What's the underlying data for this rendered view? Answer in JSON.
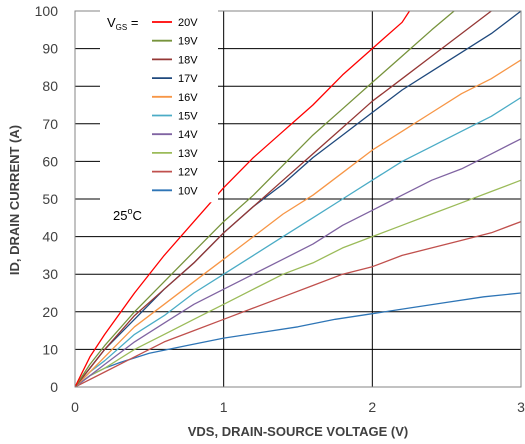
{
  "chart_data": {
    "type": "line",
    "title": "",
    "xlabel": "VDS, DRAIN-SOURCE VOLTAGE (V)",
    "ylabel": "ID, DRAIN CURRENT (A)",
    "xlim": [
      0,
      3
    ],
    "ylim": [
      0,
      100
    ],
    "x_ticks": [
      "0",
      "1",
      "2",
      "3"
    ],
    "y_ticks": [
      "0",
      "10",
      "20",
      "30",
      "40",
      "50",
      "60",
      "70",
      "80",
      "90",
      "100"
    ],
    "grid": "major gridlines on both axes",
    "legend_title": "VGS =",
    "legend_title_main": "V",
    "legend_title_sub": "GS",
    "legend_title_suffix": " =",
    "legend_position": "top-left",
    "annotation": "25°C",
    "annotation_main": "25",
    "annotation_sup": "o",
    "annotation_suffix": "C",
    "series": [
      {
        "name": "20V",
        "color": "#ff0000",
        "x": [
          0,
          0.1,
          0.2,
          0.4,
          0.6,
          0.8,
          1.0,
          1.2,
          1.4,
          1.6,
          1.8,
          2.0,
          2.2,
          2.25
        ],
        "y": [
          0,
          8,
          14,
          25,
          35,
          44,
          53,
          61,
          68,
          75,
          83,
          90,
          97,
          100
        ]
      },
      {
        "name": "19V",
        "color": "#77933c",
        "x": [
          0,
          0.1,
          0.2,
          0.4,
          0.6,
          0.8,
          1.0,
          1.2,
          1.4,
          1.6,
          1.8,
          2.0,
          2.2,
          2.4,
          2.55
        ],
        "y": [
          0,
          6,
          11,
          20,
          28,
          36,
          44,
          51,
          59,
          67,
          74,
          81,
          88,
          95,
          100
        ]
      },
      {
        "name": "18V",
        "color": "#953735",
        "x": [
          0,
          0.1,
          0.2,
          0.4,
          0.6,
          0.8,
          1.0,
          1.2,
          1.4,
          1.6,
          1.8,
          2.0,
          2.2,
          2.4,
          2.6,
          2.8
        ],
        "y": [
          0,
          5,
          10,
          19,
          26,
          33,
          41,
          48,
          55,
          62,
          69,
          76,
          82,
          88,
          94,
          100
        ]
      },
      {
        "name": "17V",
        "color": "#1f497d",
        "x": [
          0,
          0.1,
          0.2,
          0.4,
          0.6,
          0.8,
          1.0,
          1.2,
          1.4,
          1.6,
          1.8,
          2.0,
          2.2,
          2.4,
          2.6,
          2.8,
          3.0
        ],
        "y": [
          0,
          5,
          10,
          18,
          26,
          33,
          41,
          48,
          54,
          61,
          67,
          73,
          79,
          84,
          89,
          94,
          100
        ]
      },
      {
        "name": "16V",
        "color": "#f79646",
        "x": [
          0,
          0.1,
          0.2,
          0.4,
          0.6,
          0.8,
          1.0,
          1.2,
          1.4,
          1.6,
          1.8,
          2.0,
          2.2,
          2.4,
          2.6,
          2.8,
          3.0
        ],
        "y": [
          0,
          4,
          8,
          16,
          22,
          28,
          34,
          40,
          46,
          51,
          57,
          63,
          68,
          73,
          78,
          82,
          87
        ]
      },
      {
        "name": "15V",
        "color": "#4bacc6",
        "x": [
          0,
          0.1,
          0.2,
          0.4,
          0.6,
          0.8,
          1.0,
          1.2,
          1.4,
          1.6,
          1.8,
          2.0,
          2.2,
          2.4,
          2.6,
          2.8,
          3.0
        ],
        "y": [
          0,
          4,
          7,
          14,
          19,
          25,
          30,
          35,
          40,
          45,
          50,
          55,
          60,
          64,
          68,
          72,
          77
        ]
      },
      {
        "name": "14V",
        "color": "#8064a2",
        "x": [
          0,
          0.1,
          0.2,
          0.4,
          0.6,
          0.8,
          1.0,
          1.2,
          1.4,
          1.6,
          1.8,
          2.0,
          2.2,
          2.4,
          2.6,
          2.8,
          3.0
        ],
        "y": [
          0,
          3,
          6,
          12,
          17,
          22,
          26,
          30,
          34,
          38,
          43,
          47,
          51,
          55,
          58,
          62,
          66
        ]
      },
      {
        "name": "13V",
        "color": "#9bbb59",
        "x": [
          0,
          0.1,
          0.2,
          0.4,
          0.6,
          0.8,
          1.0,
          1.2,
          1.4,
          1.6,
          1.8,
          2.0,
          2.2,
          2.4,
          2.6,
          2.8,
          3.0
        ],
        "y": [
          0,
          3,
          5,
          10,
          14,
          18,
          22,
          26,
          30,
          33,
          37,
          40,
          43,
          46,
          49,
          52,
          55
        ]
      },
      {
        "name": "12V",
        "color": "#c0504d",
        "x": [
          0,
          0.1,
          0.2,
          0.4,
          0.6,
          0.8,
          1.0,
          1.2,
          1.4,
          1.6,
          1.8,
          2.0,
          2.2,
          2.4,
          2.6,
          2.8,
          3.0
        ],
        "y": [
          0,
          2,
          4,
          8,
          12,
          15,
          18,
          21,
          24,
          27,
          30,
          32,
          35,
          37,
          39,
          41,
          44
        ]
      },
      {
        "name": "10V",
        "color": "#2e75b6",
        "x": [
          0,
          0.1,
          0.2,
          0.3,
          0.5,
          0.75,
          1.0,
          1.25,
          1.5,
          1.75,
          2.0,
          2.25,
          2.5,
          2.75,
          3.0
        ],
        "y": [
          0,
          3,
          5,
          6.5,
          9,
          11,
          13,
          14.5,
          16,
          18,
          19.5,
          21,
          22.5,
          24,
          25
        ]
      }
    ]
  }
}
